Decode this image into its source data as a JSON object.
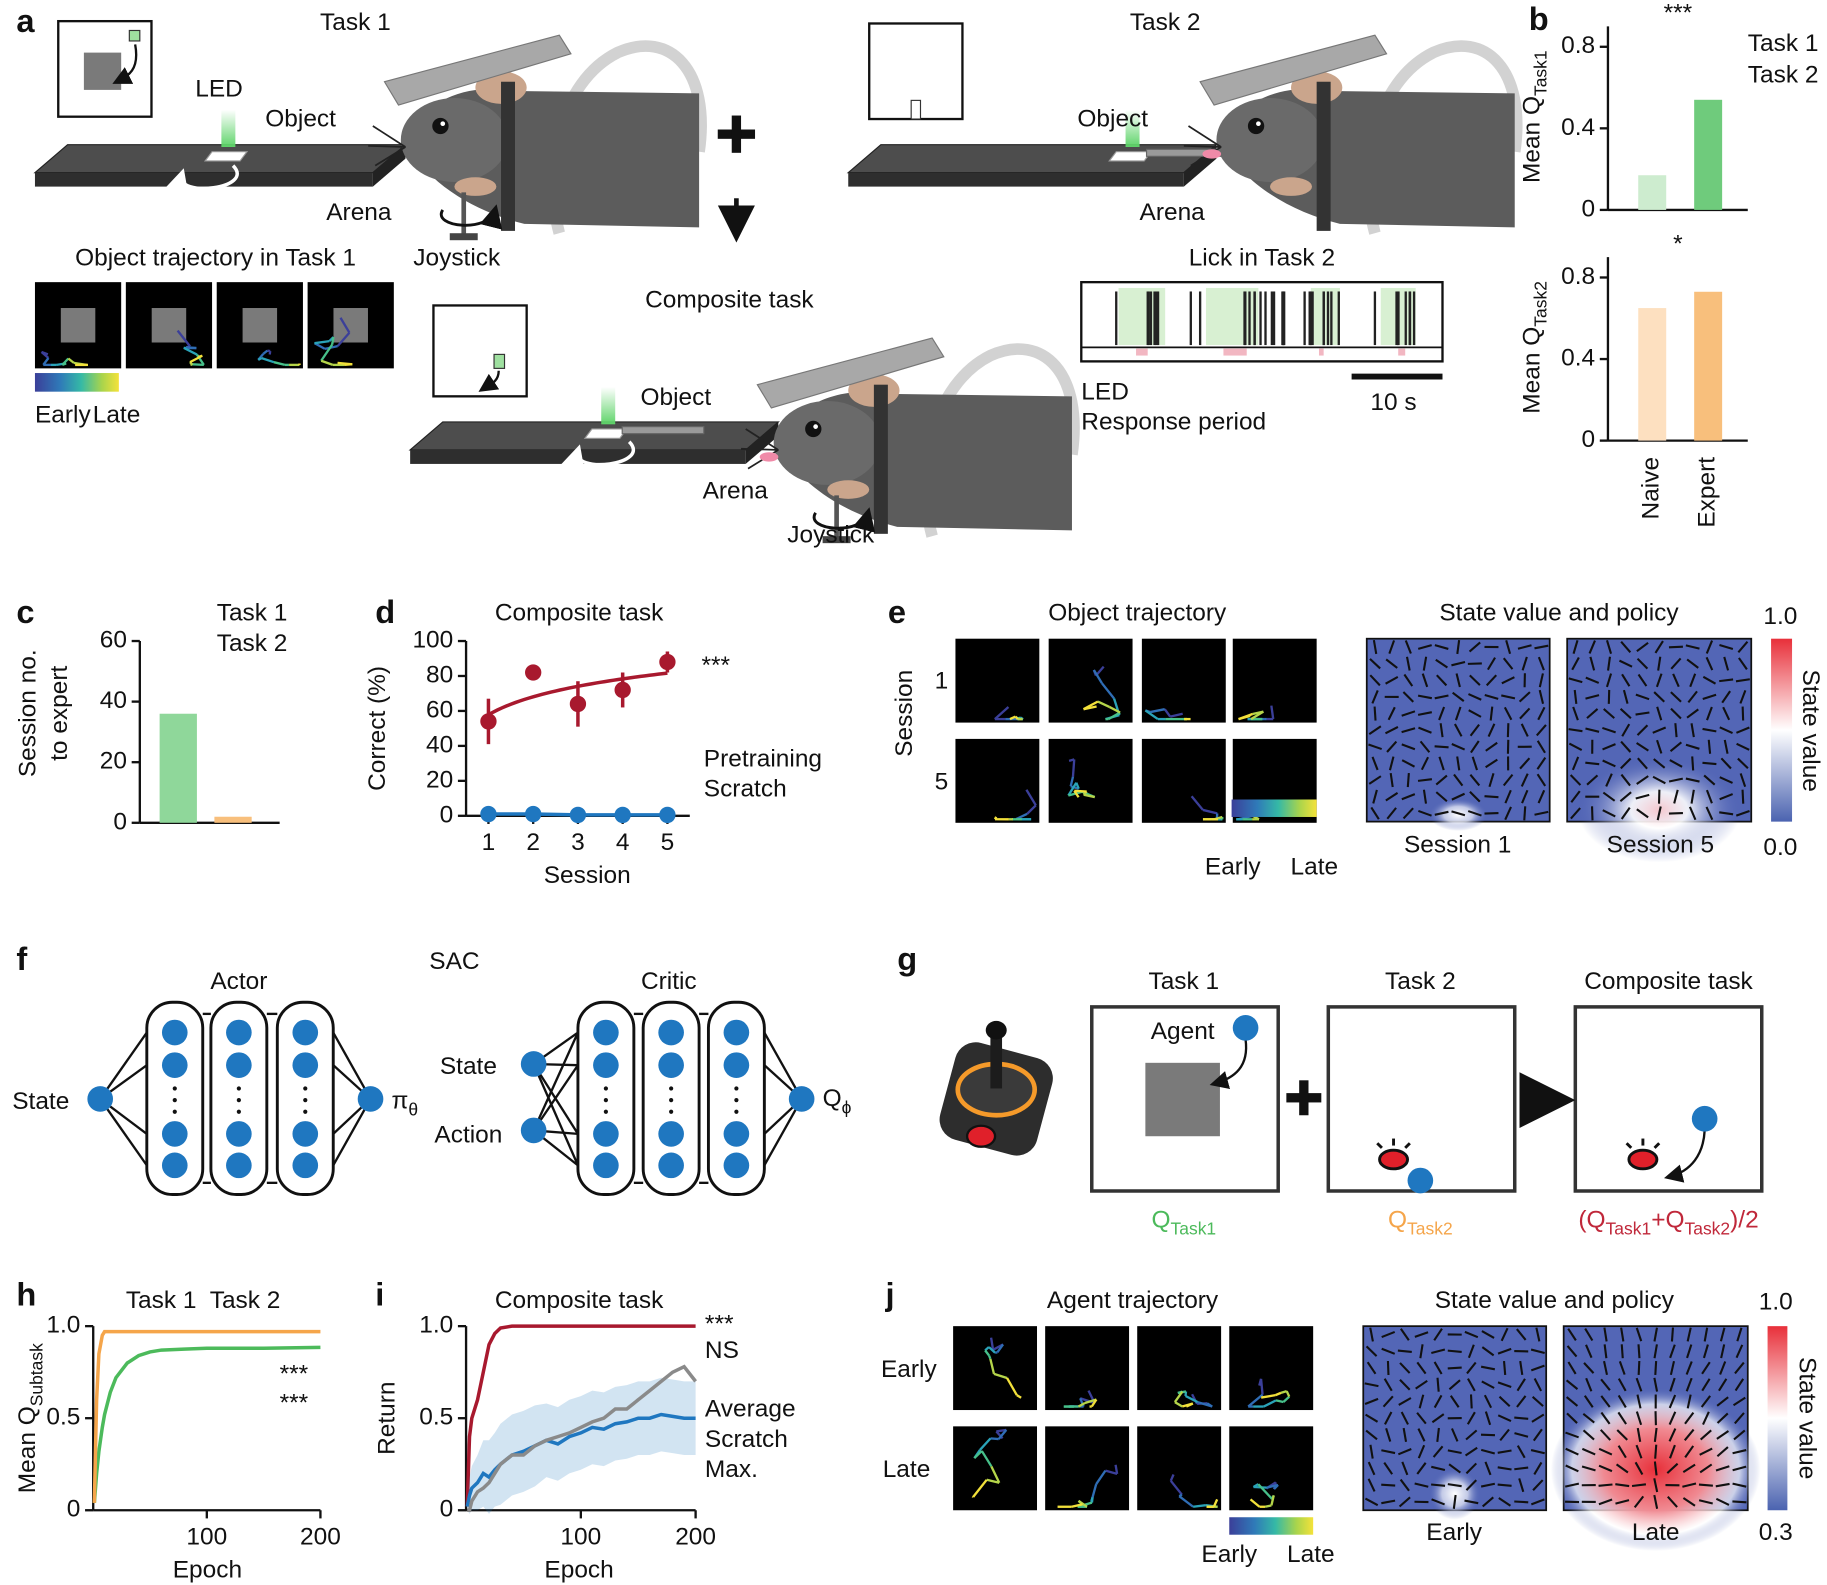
{
  "panel_labels": [
    "a",
    "b",
    "c",
    "d",
    "e",
    "f",
    "g",
    "h",
    "i",
    "j"
  ],
  "a": {
    "task1_title": "Task 1",
    "led": "LED",
    "object1": "Object",
    "arena1": "Arena",
    "joystick1": "Joystick",
    "traj_title": "Object trajectory in Task 1",
    "early": "Early",
    "late": "Late",
    "task2_title": "Task 2",
    "object2": "Object",
    "arena2": "Arena",
    "lick_title": "Lick in Task 2",
    "lick_led": "LED",
    "response": "Response period",
    "scale": "10 s",
    "composite_title": "Composite task",
    "object3": "Object",
    "arena3": "Arena",
    "joystick3": "Joystick"
  },
  "chart_data": [
    {
      "type": "bar",
      "ylabel": "Mean Q",
      "ylabel_sub": "Task1",
      "categories": [
        null,
        null
      ],
      "series": [
        {
          "name": "Task 1",
          "color": "#4cba5b",
          "colors": [
            "#cdeccf",
            "#6fcb7c"
          ],
          "values": [
            0.17,
            0.54
          ]
        }
      ],
      "ylim": [
        0,
        0.9
      ],
      "yticks": [
        0,
        0.4,
        0.8
      ],
      "annotations": [
        {
          "text": "***"
        }
      ]
    },
    {
      "type": "bar",
      "ylabel": "Mean Q",
      "ylabel_sub": "Task2",
      "categories": [
        "Naive",
        "Expert"
      ],
      "series": [
        {
          "name": "Task 2",
          "color": "#f5a54a",
          "colors": [
            "#fde0c0",
            "#f8bf7c"
          ],
          "values": [
            0.65,
            0.73
          ]
        }
      ],
      "ylim": [
        0,
        0.9
      ],
      "yticks": [
        0,
        0.4,
        0.8
      ],
      "annotations": [
        {
          "text": "*"
        }
      ]
    },
    {
      "type": "bar",
      "ylabel": [
        "Session no.",
        "to expert"
      ],
      "categories": [
        null,
        null
      ],
      "series": [
        {
          "name": "Task 1",
          "color": "#4cba5b",
          "colors": [
            "#8fd79a",
            null
          ],
          "values": [
            36,
            null
          ]
        },
        {
          "name": "Task 2",
          "color": "#f5a54a",
          "colors": [
            null,
            "#f8bf7c"
          ],
          "values": [
            null,
            2
          ]
        }
      ],
      "ylim": [
        0,
        60
      ],
      "yticks": [
        0,
        20,
        40,
        60
      ]
    },
    {
      "type": "line",
      "title": "Composite task",
      "xlabel": "Session",
      "ylabel": "Correct (%)",
      "x": [
        1,
        2,
        3,
        4,
        5
      ],
      "xlim": [
        0.5,
        5.5
      ],
      "xticks": [
        1,
        2,
        3,
        4,
        5
      ],
      "ylim": [
        0,
        100
      ],
      "yticks": [
        0,
        20,
        40,
        60,
        80,
        100
      ],
      "series": [
        {
          "name": "Pretraining",
          "color": "#a8192e",
          "values": [
            54,
            82,
            64,
            72,
            88
          ],
          "errors": [
            13,
            4,
            13,
            10,
            6
          ],
          "markers": true,
          "fit": "log"
        },
        {
          "name": "Scratch",
          "color": "#1f77c0",
          "values": [
            1,
            1,
            0.5,
            0.5,
            0.5
          ],
          "markers": true
        }
      ],
      "annotations": [
        {
          "text": "***"
        }
      ]
    },
    {
      "type": "line",
      "ylabel": "Mean Q",
      "ylabel_sub": "Subtask",
      "xlabel": "Epoch",
      "x": [
        1,
        3,
        5,
        8,
        10,
        15,
        20,
        30,
        40,
        50,
        60,
        80,
        100,
        150,
        200
      ],
      "xlim": [
        0,
        200
      ],
      "xticks": [
        100,
        200
      ],
      "ylim": [
        0,
        1
      ],
      "yticks": [
        0,
        0.5,
        {
          "value": 1,
          "label": "1.0"
        }
      ],
      "series": [
        {
          "name": "Task 1",
          "color": "#4cba5b",
          "values": [
            0.04,
            0.2,
            0.32,
            0.45,
            0.52,
            0.64,
            0.72,
            0.8,
            0.84,
            0.86,
            0.87,
            0.875,
            0.88,
            0.88,
            0.885
          ]
        },
        {
          "name": "Task 2",
          "color": "#f5a54a",
          "values": [
            0.04,
            0.6,
            0.85,
            0.95,
            0.97,
            0.97,
            0.97,
            0.97,
            0.97,
            0.97,
            0.97,
            0.97,
            0.97,
            0.97,
            0.97
          ]
        }
      ],
      "annotations": [
        {
          "text": "***",
          "color": "#f5a54a"
        },
        {
          "text": "***",
          "color": "#4cba5b"
        }
      ]
    },
    {
      "type": "line",
      "title": "Composite task",
      "ylabel": "Return",
      "xlabel": "Epoch",
      "x": [
        1,
        3,
        5,
        10,
        15,
        20,
        25,
        30,
        40,
        50,
        60,
        70,
        80,
        90,
        100,
        110,
        120,
        130,
        140,
        150,
        160,
        170,
        180,
        190,
        200
      ],
      "xlim": [
        0,
        200
      ],
      "xticks": [
        100,
        200
      ],
      "ylim": [
        0,
        1
      ],
      "yticks": [
        0,
        0.5,
        {
          "value": 1,
          "label": "1.0"
        }
      ],
      "series": [
        {
          "name": "Average",
          "color": "#a8192e",
          "values": [
            0.02,
            0.4,
            0.5,
            0.6,
            0.75,
            0.9,
            0.96,
            0.99,
            1,
            1,
            1,
            1,
            1,
            1,
            1,
            1,
            1,
            1,
            1,
            1,
            1,
            1,
            1,
            1,
            1
          ]
        },
        {
          "name": "Scratch",
          "color": "#1f77c0",
          "values": [
            0.02,
            0.08,
            0.12,
            0.15,
            0.2,
            0.18,
            0.22,
            0.25,
            0.3,
            0.32,
            0.35,
            0.38,
            0.36,
            0.4,
            0.42,
            0.45,
            0.44,
            0.47,
            0.48,
            0.5,
            0.5,
            0.52,
            0.51,
            0.5,
            0.5
          ],
          "errors": [
            0.02,
            0.1,
            0.12,
            0.15,
            0.18,
            0.2,
            0.2,
            0.22,
            0.22,
            0.22,
            0.22,
            0.2,
            0.2,
            0.2,
            0.2,
            0.2,
            0.2,
            0.2,
            0.2,
            0.2,
            0.2,
            0.2,
            0.2,
            0.2,
            0.2
          ]
        },
        {
          "name": "Max.",
          "color": "#8a8a8a",
          "values": [
            0,
            0,
            0.05,
            0.1,
            0.12,
            0.15,
            0.2,
            0.25,
            0.3,
            0.3,
            0.35,
            0.38,
            0.4,
            0.42,
            0.45,
            0.48,
            0.5,
            0.55,
            0.55,
            0.6,
            0.65,
            0.7,
            0.75,
            0.78,
            0.7
          ]
        }
      ],
      "annotations": [
        {
          "text": "***",
          "color": "#a8192e"
        },
        {
          "text": "NS",
          "color": "#8a8a8a"
        }
      ]
    }
  ],
  "e": {
    "traj_title": "Object trajectory",
    "session_label": "Session",
    "row1": "1",
    "row5": "5",
    "early": "Early",
    "late": "Late",
    "value_title": "State value and policy",
    "map1": "Session 1",
    "map2": "Session 5",
    "cbar_max": "1.0",
    "cbar_min": "0.0",
    "cbar_label": "State value"
  },
  "f": {
    "title": "SAC",
    "actor": "Actor",
    "critic": "Critic",
    "actor_input": "State",
    "actor_output": "π",
    "actor_output_sub": "θ",
    "critic_state": "State",
    "critic_action": "Action",
    "critic_output": "Q",
    "critic_output_sub": "ϕ"
  },
  "g": {
    "task1": "Task 1",
    "task2": "Task 2",
    "composite": "Composite task",
    "agent": "Agent",
    "q1": [
      "Q",
      "Task1"
    ],
    "q2": [
      "Q",
      "Task2"
    ],
    "qc": [
      "(Q",
      "Task1",
      "+Q",
      "Task2",
      ")/2"
    ]
  },
  "j": {
    "traj_title": "Agent trajectory",
    "row_early": "Early",
    "row_late": "Late",
    "early": "Early",
    "late": "Late",
    "value_title": "State value and policy",
    "map1": "Early",
    "map2": "Late",
    "cbar_max": "1.0",
    "cbar_min": "0.3",
    "cbar_label": "State value"
  }
}
